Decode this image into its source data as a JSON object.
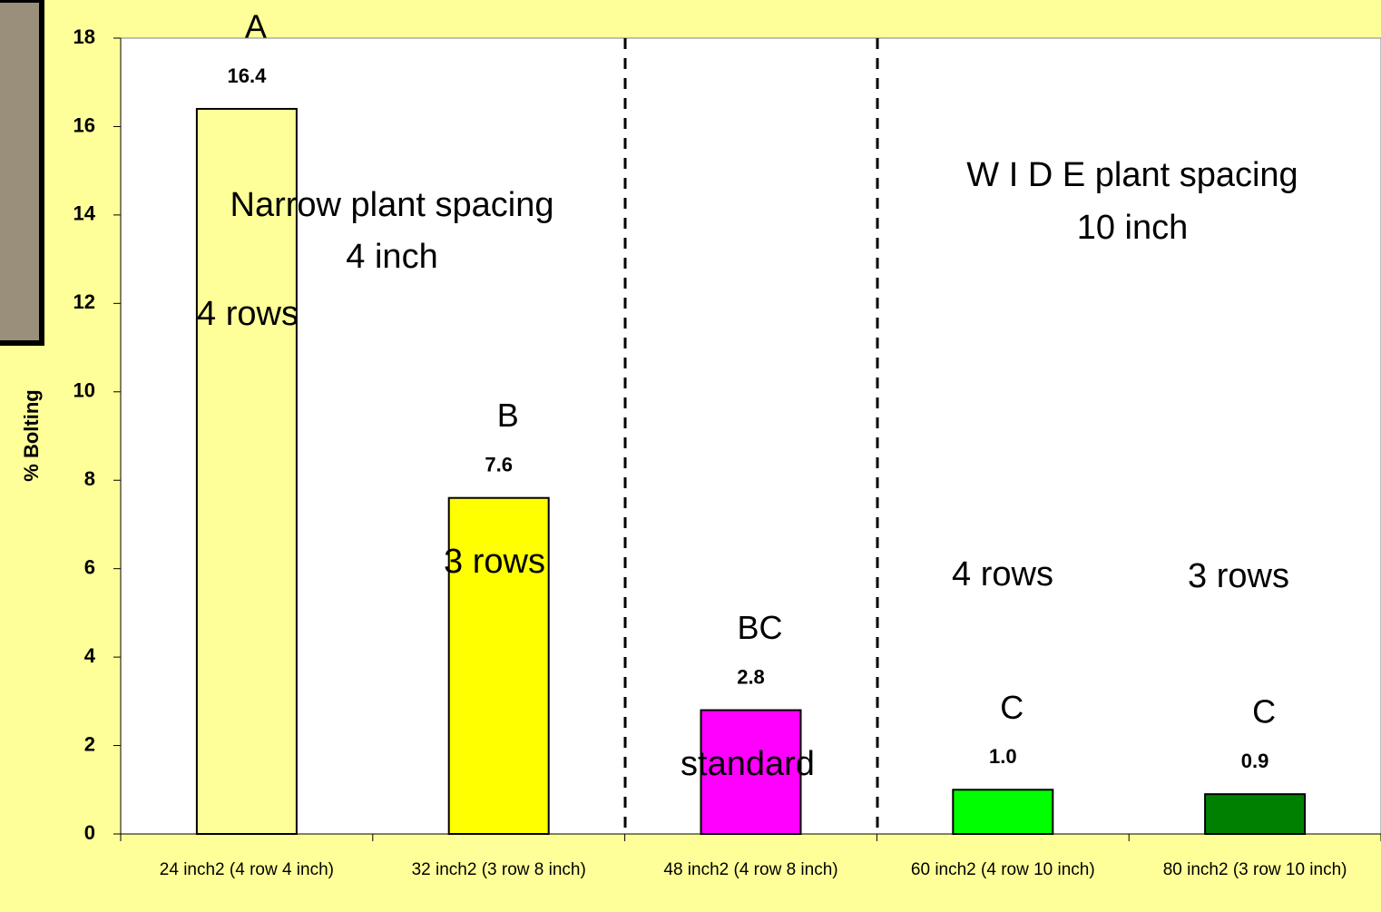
{
  "chart_data": {
    "type": "bar",
    "y_label": "% Bolting",
    "categories": [
      "24 inch2 (4 row 4 inch)",
      "32 inch2 (3 row 8 inch)",
      "48 inch2 (4 row 8 inch)",
      "60 inch2 (4 row 10 inch)",
      "80 inch2 (3 row 10 inch)"
    ],
    "values": [
      16.4,
      7.6,
      2.8,
      1.0,
      0.9
    ],
    "value_labels": [
      "16.4",
      "7.6",
      "2.8",
      "1.0",
      "0.9"
    ],
    "colors": [
      "#ffff99",
      "#ffff00",
      "#ff00ff",
      "#00ff00",
      "#008000"
    ],
    "significance_letters": [
      "A",
      "B",
      "BC",
      "C",
      "C"
    ],
    "annotations": [
      "Narrow plant spacing",
      "4 inch",
      "4 rows",
      "3 rows",
      "standard",
      "W I D E plant spacing",
      "10 inch",
      "4 rows",
      "3 rows"
    ],
    "ylim": [
      0,
      18
    ],
    "yticks": [
      0,
      2,
      4,
      6,
      8,
      10,
      12,
      14,
      16,
      18
    ],
    "grid": false
  }
}
